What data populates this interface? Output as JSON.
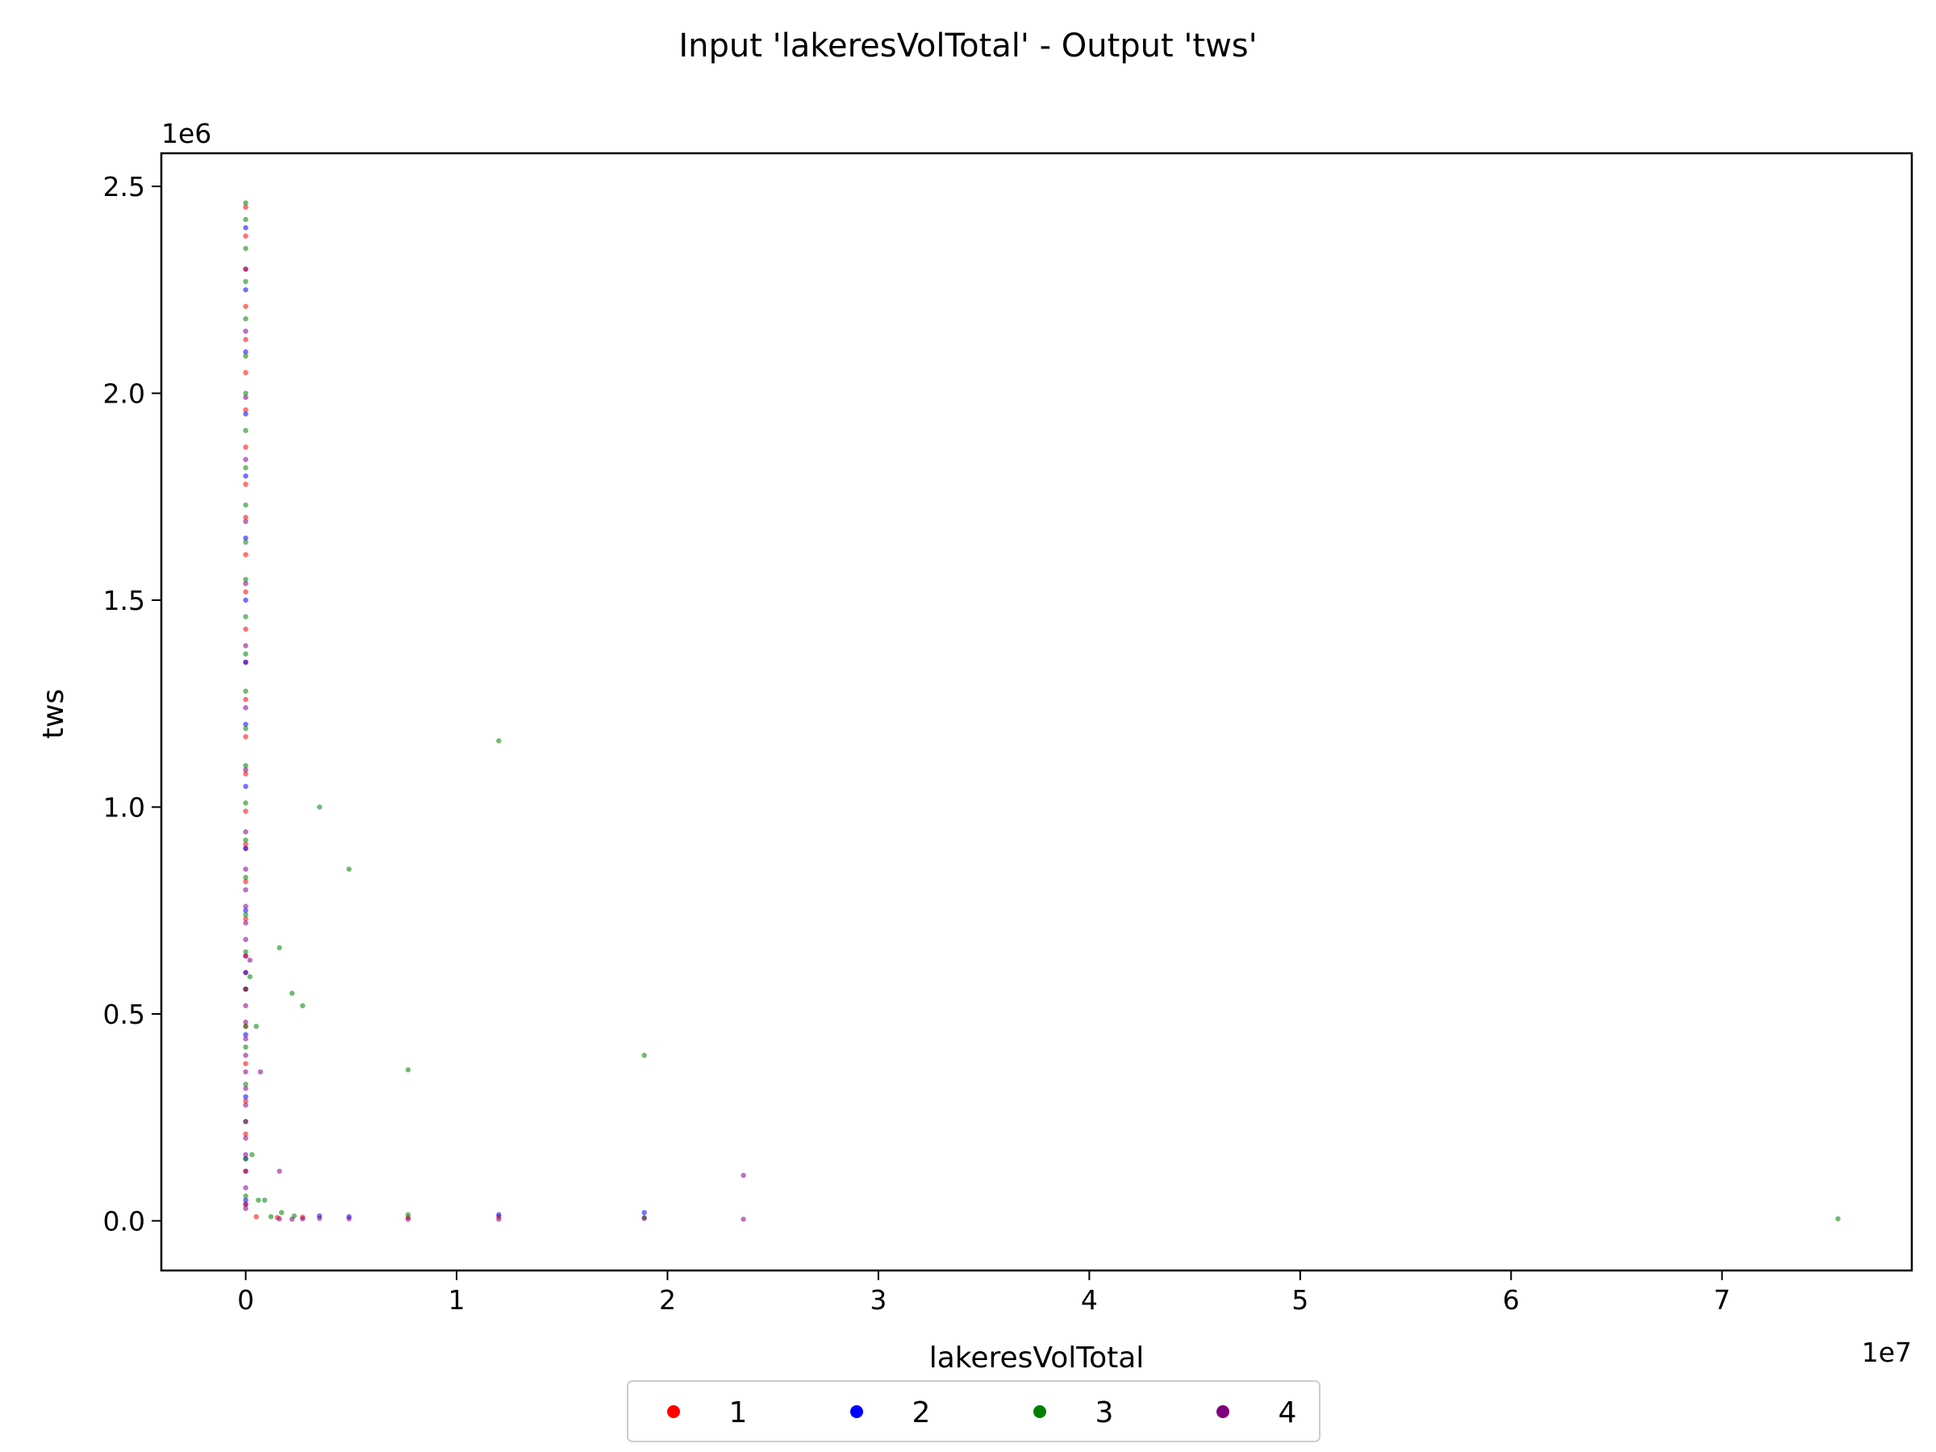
{
  "chart_data": {
    "type": "scatter",
    "title": "Input 'lakeresVolTotal' - Output 'tws'",
    "xlabel": "lakeresVolTotal",
    "ylabel": "tws",
    "x_offset_text": "1e7",
    "y_offset_text": "1e6",
    "xlim": [
      -4000000,
      79000000
    ],
    "ylim": [
      -120000,
      2580000
    ],
    "x_ticks": [
      0,
      10000000,
      20000000,
      30000000,
      40000000,
      50000000,
      60000000,
      70000000
    ],
    "x_tick_labels": [
      "0",
      "1",
      "2",
      "3",
      "4",
      "5",
      "6",
      "7"
    ],
    "y_ticks": [
      0,
      500000,
      1000000,
      1500000,
      2000000,
      2500000
    ],
    "y_tick_labels": [
      "0.0",
      "0.5",
      "1.0",
      "1.5",
      "2.0",
      "2.5"
    ],
    "grid": false,
    "legend_position": "bottom-center",
    "colors": {
      "1": "#ff0000",
      "2": "#0000ff",
      "3": "#008000",
      "4": "#800080"
    },
    "series": [
      {
        "name": "1",
        "color": "#ff0000",
        "points": [
          [
            0,
            2450000
          ],
          [
            0,
            2380000
          ],
          [
            0,
            2300000
          ],
          [
            0,
            2210000
          ],
          [
            0,
            2130000
          ],
          [
            0,
            2050000
          ],
          [
            0,
            1960000
          ],
          [
            0,
            1870000
          ],
          [
            0,
            1780000
          ],
          [
            0,
            1700000
          ],
          [
            0,
            1610000
          ],
          [
            0,
            1520000
          ],
          [
            0,
            1430000
          ],
          [
            0,
            1350000
          ],
          [
            0,
            1260000
          ],
          [
            0,
            1170000
          ],
          [
            0,
            1080000
          ],
          [
            0,
            990000
          ],
          [
            0,
            910000
          ],
          [
            0,
            820000
          ],
          [
            0,
            730000
          ],
          [
            0,
            640000
          ],
          [
            0,
            560000
          ],
          [
            0,
            470000
          ],
          [
            0,
            380000
          ],
          [
            0,
            290000
          ],
          [
            0,
            210000
          ],
          [
            0,
            120000
          ],
          [
            0,
            40000
          ],
          [
            500000,
            10000
          ],
          [
            1500000,
            8000
          ],
          [
            2700000,
            9000
          ],
          [
            7700000,
            8000
          ],
          [
            12000000,
            10000
          ]
        ]
      },
      {
        "name": "2",
        "color": "#0000ff",
        "points": [
          [
            0,
            2400000
          ],
          [
            0,
            2250000
          ],
          [
            0,
            2100000
          ],
          [
            0,
            1950000
          ],
          [
            0,
            1800000
          ],
          [
            0,
            1650000
          ],
          [
            0,
            1500000
          ],
          [
            0,
            1350000
          ],
          [
            0,
            1200000
          ],
          [
            0,
            1050000
          ],
          [
            0,
            900000
          ],
          [
            0,
            750000
          ],
          [
            0,
            600000
          ],
          [
            0,
            450000
          ],
          [
            0,
            300000
          ],
          [
            0,
            150000
          ],
          [
            0,
            50000
          ],
          [
            3500000,
            12000
          ],
          [
            4900000,
            10000
          ],
          [
            12000000,
            15000
          ],
          [
            18900000,
            20000
          ]
        ]
      },
      {
        "name": "3",
        "color": "#008000",
        "points": [
          [
            0,
            2460000
          ],
          [
            0,
            2420000
          ],
          [
            0,
            2350000
          ],
          [
            0,
            2270000
          ],
          [
            0,
            2180000
          ],
          [
            0,
            2090000
          ],
          [
            0,
            2000000
          ],
          [
            0,
            1910000
          ],
          [
            0,
            1820000
          ],
          [
            0,
            1730000
          ],
          [
            0,
            1640000
          ],
          [
            0,
            1550000
          ],
          [
            0,
            1460000
          ],
          [
            0,
            1370000
          ],
          [
            0,
            1280000
          ],
          [
            0,
            1190000
          ],
          [
            0,
            1100000
          ],
          [
            0,
            1010000
          ],
          [
            0,
            920000
          ],
          [
            0,
            830000
          ],
          [
            0,
            740000
          ],
          [
            0,
            650000
          ],
          [
            0,
            560000
          ],
          [
            0,
            470000
          ],
          [
            0,
            420000
          ],
          [
            0,
            330000
          ],
          [
            0,
            240000
          ],
          [
            0,
            150000
          ],
          [
            0,
            60000
          ],
          [
            200000,
            590000
          ],
          [
            300000,
            160000
          ],
          [
            500000,
            470000
          ],
          [
            600000,
            50000
          ],
          [
            900000,
            50000
          ],
          [
            1600000,
            660000
          ],
          [
            1700000,
            20000
          ],
          [
            2200000,
            550000
          ],
          [
            2700000,
            520000
          ],
          [
            3500000,
            1000000
          ],
          [
            4900000,
            850000
          ],
          [
            7700000,
            365000
          ],
          [
            12000000,
            1160000
          ],
          [
            18900000,
            400000
          ],
          [
            75500000,
            5000
          ],
          [
            1200000,
            10000
          ],
          [
            2300000,
            12000
          ],
          [
            7700000,
            15000
          ],
          [
            18900000,
            8000
          ]
        ]
      },
      {
        "name": "4",
        "color": "#800080",
        "points": [
          [
            0,
            2300000
          ],
          [
            0,
            2150000
          ],
          [
            0,
            1990000
          ],
          [
            0,
            1840000
          ],
          [
            0,
            1690000
          ],
          [
            0,
            1540000
          ],
          [
            0,
            1390000
          ],
          [
            0,
            1240000
          ],
          [
            0,
            1090000
          ],
          [
            0,
            940000
          ],
          [
            0,
            900000
          ],
          [
            0,
            850000
          ],
          [
            0,
            800000
          ],
          [
            0,
            760000
          ],
          [
            0,
            720000
          ],
          [
            0,
            680000
          ],
          [
            0,
            640000
          ],
          [
            0,
            600000
          ],
          [
            0,
            560000
          ],
          [
            0,
            520000
          ],
          [
            0,
            480000
          ],
          [
            0,
            440000
          ],
          [
            0,
            400000
          ],
          [
            0,
            360000
          ],
          [
            0,
            320000
          ],
          [
            0,
            280000
          ],
          [
            0,
            240000
          ],
          [
            0,
            200000
          ],
          [
            0,
            160000
          ],
          [
            0,
            120000
          ],
          [
            0,
            80000
          ],
          [
            0,
            40000
          ],
          [
            0,
            30000
          ],
          [
            200000,
            630000
          ],
          [
            700000,
            360000
          ],
          [
            1600000,
            120000
          ],
          [
            23600000,
            110000
          ],
          [
            1600000,
            5000
          ],
          [
            2200000,
            4000
          ],
          [
            2700000,
            5000
          ],
          [
            3500000,
            6000
          ],
          [
            4900000,
            5000
          ],
          [
            7700000,
            4000
          ],
          [
            12000000,
            4000
          ],
          [
            18900000,
            6000
          ],
          [
            23600000,
            4000
          ]
        ]
      }
    ]
  }
}
